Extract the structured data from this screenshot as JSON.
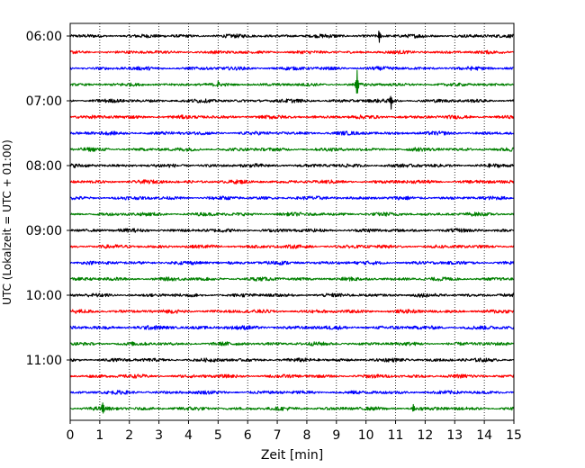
{
  "chart_data": {
    "type": "line",
    "title": "",
    "xlabel": "Zeit  [min]",
    "ylabel": "UTC (Lokalzeit = UTC + 01:00)",
    "xlim": [
      0,
      15
    ],
    "x_ticks": [
      0,
      1,
      2,
      3,
      4,
      5,
      6,
      7,
      8,
      9,
      10,
      11,
      12,
      13,
      14,
      15
    ],
    "y_tick_labels": [
      "06:00",
      "07:00",
      "08:00",
      "09:00",
      "10:00",
      "11:00"
    ],
    "grid": "vertical dotted",
    "legend": "none",
    "color_cycle": [
      "#000000",
      "#ff0000",
      "#0000ff",
      "#008000"
    ],
    "rows": [
      {
        "start": "06:00",
        "color": "#000000",
        "amplitude": 0.45,
        "events": [
          {
            "t": 10.45,
            "amp": 2.6
          }
        ]
      },
      {
        "start": "06:15",
        "color": "#ff0000",
        "amplitude": 0.4,
        "events": []
      },
      {
        "start": "06:30",
        "color": "#0000ff",
        "amplitude": 0.45,
        "events": []
      },
      {
        "start": "06:45",
        "color": "#008000",
        "amplitude": 0.4,
        "events": [
          {
            "t": 9.7,
            "amp": 5.5
          },
          {
            "t": 5.0,
            "amp": 1.0
          }
        ]
      },
      {
        "start": "07:00",
        "color": "#000000",
        "amplitude": 0.45,
        "events": [
          {
            "t": 10.85,
            "amp": 2.6
          }
        ]
      },
      {
        "start": "07:15",
        "color": "#ff0000",
        "amplitude": 0.45,
        "events": []
      },
      {
        "start": "07:30",
        "color": "#0000ff",
        "amplitude": 0.45,
        "events": []
      },
      {
        "start": "07:45",
        "color": "#008000",
        "amplitude": 0.45,
        "events": []
      },
      {
        "start": "08:00",
        "color": "#000000",
        "amplitude": 0.45,
        "events": []
      },
      {
        "start": "08:15",
        "color": "#ff0000",
        "amplitude": 0.45,
        "events": []
      },
      {
        "start": "08:30",
        "color": "#0000ff",
        "amplitude": 0.45,
        "events": []
      },
      {
        "start": "08:45",
        "color": "#008000",
        "amplitude": 0.45,
        "events": []
      },
      {
        "start": "09:00",
        "color": "#000000",
        "amplitude": 0.45,
        "events": []
      },
      {
        "start": "09:15",
        "color": "#ff0000",
        "amplitude": 0.45,
        "events": []
      },
      {
        "start": "09:30",
        "color": "#0000ff",
        "amplitude": 0.45,
        "events": []
      },
      {
        "start": "09:45",
        "color": "#008000",
        "amplitude": 0.45,
        "events": []
      },
      {
        "start": "10:00",
        "color": "#000000",
        "amplitude": 0.45,
        "events": []
      },
      {
        "start": "10:15",
        "color": "#ff0000",
        "amplitude": 0.45,
        "events": []
      },
      {
        "start": "10:30",
        "color": "#0000ff",
        "amplitude": 0.5,
        "events": []
      },
      {
        "start": "10:45",
        "color": "#008000",
        "amplitude": 0.45,
        "events": []
      },
      {
        "start": "11:00",
        "color": "#000000",
        "amplitude": 0.45,
        "events": []
      },
      {
        "start": "11:15",
        "color": "#ff0000",
        "amplitude": 0.45,
        "events": []
      },
      {
        "start": "11:30",
        "color": "#0000ff",
        "amplitude": 0.45,
        "events": []
      },
      {
        "start": "11:45",
        "color": "#008000",
        "amplitude": 0.45,
        "events": [
          {
            "t": 1.1,
            "amp": 2.2
          },
          {
            "t": 11.6,
            "amp": 1.5
          }
        ]
      }
    ]
  }
}
